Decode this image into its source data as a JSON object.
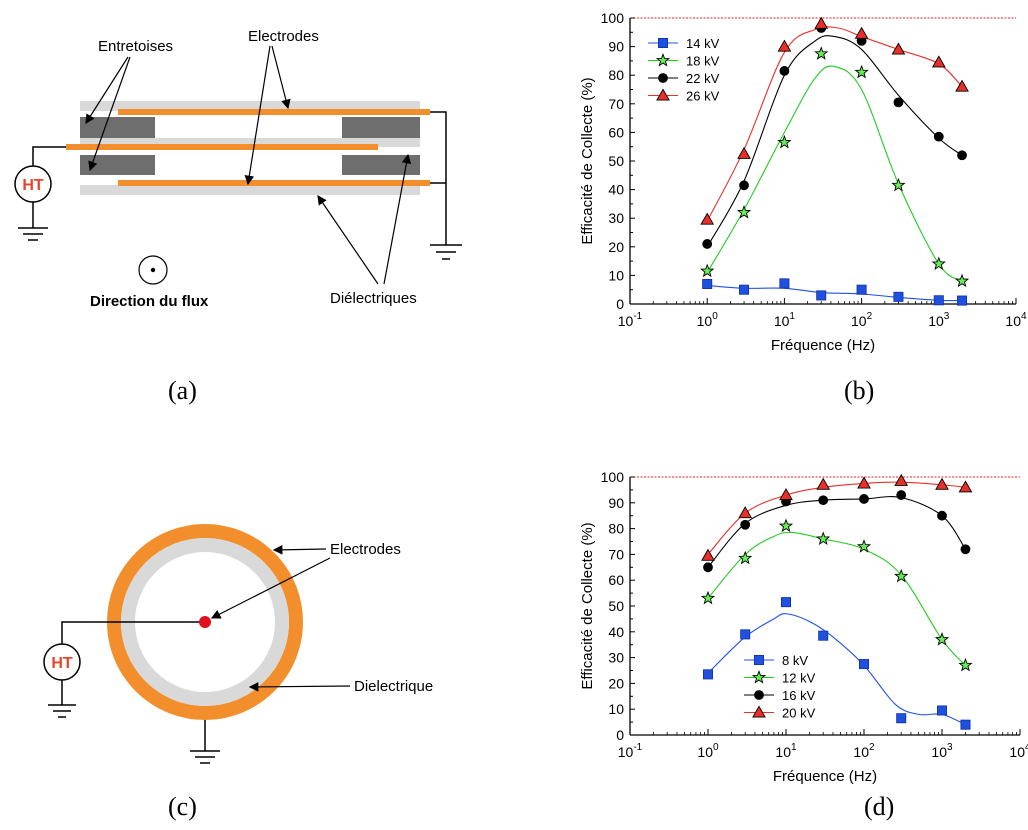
{
  "panels": {
    "a": {
      "caption": "(a)",
      "labels": {
        "entretoises": "Entretoises",
        "electrodes": "Electrodes",
        "ht": "HT",
        "direction": "Direction du flux",
        "dielectriques": "Diélectriques"
      }
    },
    "c": {
      "caption": "(c)",
      "labels": {
        "electrodes": "Electrodes",
        "ht": "HT",
        "dielectrique": "Dielectrique"
      }
    },
    "b": {
      "caption": "(b)"
    },
    "d": {
      "caption": "(d)"
    }
  },
  "colors": {
    "electrode": "#f28e2b",
    "spacer": "#6e6e6e",
    "dielectric": "#d9d9d9",
    "ht_text": "#e8452c",
    "center_dot": "#e0101c"
  },
  "chart_data": [
    {
      "type": "line",
      "id": "b",
      "xlabel": "Fréquence (Hz)",
      "ylabel": "Efficacité de Collecte (%)",
      "x_scale": "log",
      "xlim": [
        0.1,
        10000
      ],
      "ylim": [
        0,
        100
      ],
      "yticks": [
        "0",
        "10",
        "20",
        "30",
        "40",
        "50",
        "60",
        "70",
        "80",
        "90",
        "100"
      ],
      "xticks": [
        {
          "base": "10",
          "exp": "-1",
          "value": 0.1
        },
        {
          "base": "10",
          "exp": "0",
          "value": 1
        },
        {
          "base": "10",
          "exp": "1",
          "value": 10
        },
        {
          "base": "10",
          "exp": "2",
          "value": 100
        },
        {
          "base": "10",
          "exp": "3",
          "value": 1000
        },
        {
          "base": "10",
          "exp": "4",
          "value": 10000
        }
      ],
      "reference_line": 100,
      "legend_position": "top-left",
      "series": [
        {
          "name": "14 kV",
          "color": "#2050e0",
          "marker": "square",
          "x": [
            1,
            3,
            10,
            30,
            100,
            300,
            1000,
            2000
          ],
          "y": [
            7,
            5,
            7.2,
            3,
            5,
            2.5,
            1.3,
            1.2
          ],
          "curve": [
            [
              1,
              6.5
            ],
            [
              3,
              5.5
            ],
            [
              10,
              5.5
            ],
            [
              30,
              4
            ],
            [
              100,
              3.5
            ],
            [
              300,
              2.3
            ],
            [
              1000,
              1.3
            ],
            [
              2000,
              1.2
            ]
          ]
        },
        {
          "name": "18 kV",
          "color": "#22cc22",
          "marker": "star",
          "x": [
            1,
            3,
            10,
            30,
            100,
            300,
            1000,
            2000
          ],
          "y": [
            11.5,
            32,
            56.5,
            87.5,
            81,
            41.5,
            14,
            8
          ],
          "curve": [
            [
              1,
              11
            ],
            [
              3,
              33
            ],
            [
              10,
              60
            ],
            [
              25,
              79
            ],
            [
              45,
              83
            ],
            [
              100,
              75
            ],
            [
              300,
              42
            ],
            [
              1000,
              14
            ],
            [
              2000,
              8
            ]
          ]
        },
        {
          "name": "22 kV",
          "color": "#000000",
          "marker": "circle",
          "x": [
            1,
            3,
            10,
            30,
            100,
            300,
            1000,
            2000
          ],
          "y": [
            21,
            41.5,
            81.5,
            96.5,
            92,
            70.5,
            58.5,
            52
          ],
          "curve": [
            [
              1,
              20
            ],
            [
              3,
              43
            ],
            [
              10,
              80
            ],
            [
              25,
              92
            ],
            [
              45,
              93.5
            ],
            [
              100,
              89
            ],
            [
              300,
              73
            ],
            [
              1000,
              58
            ],
            [
              2000,
              52
            ]
          ]
        },
        {
          "name": "26 kV",
          "color": "#e8302a",
          "marker": "triangle",
          "x": [
            1,
            3,
            10,
            30,
            100,
            300,
            1000,
            2000
          ],
          "y": [
            29.5,
            52.5,
            90,
            98,
            94.5,
            89,
            84.5,
            76
          ],
          "curve": [
            [
              1,
              29
            ],
            [
              3,
              54
            ],
            [
              10,
              88
            ],
            [
              25,
              96
            ],
            [
              50,
              96.5
            ],
            [
              100,
              93.5
            ],
            [
              300,
              89
            ],
            [
              1000,
              84
            ],
            [
              2000,
              76
            ]
          ]
        }
      ]
    },
    {
      "type": "line",
      "id": "d",
      "xlabel": "Fréquence (Hz)",
      "ylabel": "Efficacité de Collecte (%)",
      "x_scale": "log",
      "xlim": [
        0.1,
        10000
      ],
      "ylim": [
        0,
        100
      ],
      "yticks": [
        "0",
        "10",
        "20",
        "30",
        "40",
        "50",
        "60",
        "70",
        "80",
        "90",
        "100"
      ],
      "xticks": [
        {
          "base": "10",
          "exp": "-1",
          "value": 0.1
        },
        {
          "base": "10",
          "exp": "0",
          "value": 1
        },
        {
          "base": "10",
          "exp": "1",
          "value": 10
        },
        {
          "base": "10",
          "exp": "2",
          "value": 100
        },
        {
          "base": "10",
          "exp": "3",
          "value": 1000
        },
        {
          "base": "10",
          "exp": "4",
          "value": 10000
        }
      ],
      "reference_line": 100,
      "legend_position": "bottom-center",
      "series": [
        {
          "name": "8 kV",
          "color": "#2050e0",
          "marker": "square",
          "x": [
            1,
            3,
            10,
            30,
            100,
            300,
            1000,
            2000
          ],
          "y": [
            23.5,
            39,
            51.5,
            38.5,
            27.5,
            6.5,
            9.5,
            4
          ],
          "curve": [
            [
              1,
              24
            ],
            [
              3,
              38
            ],
            [
              7,
              45
            ],
            [
              10,
              47
            ],
            [
              20,
              44
            ],
            [
              40,
              38
            ],
            [
              100,
              27
            ],
            [
              250,
              12
            ],
            [
              500,
              8
            ],
            [
              1000,
              8
            ],
            [
              2000,
              4
            ]
          ]
        },
        {
          "name": "12 kV",
          "color": "#22cc22",
          "marker": "star",
          "x": [
            1,
            3,
            10,
            30,
            100,
            300,
            1000,
            2000
          ],
          "y": [
            53,
            68.5,
            81,
            76,
            73,
            61.5,
            37,
            27
          ],
          "curve": [
            [
              1,
              53
            ],
            [
              3,
              70
            ],
            [
              7,
              77
            ],
            [
              12,
              78.5
            ],
            [
              30,
              76
            ],
            [
              100,
              72
            ],
            [
              300,
              62
            ],
            [
              1000,
              37
            ],
            [
              2000,
              27
            ]
          ]
        },
        {
          "name": "16 kV",
          "color": "#000000",
          "marker": "circle",
          "x": [
            1,
            3,
            10,
            30,
            100,
            300,
            1000,
            2000
          ],
          "y": [
            65,
            81.5,
            90.5,
            91,
            91.5,
            93,
            85,
            72
          ],
          "curve": [
            [
              1,
              65
            ],
            [
              3,
              82
            ],
            [
              10,
              89
            ],
            [
              30,
              91
            ],
            [
              100,
              91.5
            ],
            [
              300,
              92
            ],
            [
              1000,
              85
            ],
            [
              2000,
              72
            ]
          ]
        },
        {
          "name": "20 kV",
          "color": "#e8302a",
          "marker": "triangle",
          "x": [
            1,
            3,
            10,
            30,
            100,
            300,
            1000,
            2000
          ],
          "y": [
            69.5,
            86,
            93,
            97,
            97.5,
            98.5,
            97,
            96
          ],
          "curve": [
            [
              1,
              70
            ],
            [
              3,
              86
            ],
            [
              10,
              93
            ],
            [
              30,
              96
            ],
            [
              100,
              97.5
            ],
            [
              300,
              98
            ],
            [
              1000,
              97
            ],
            [
              2000,
              96
            ]
          ]
        }
      ]
    }
  ]
}
